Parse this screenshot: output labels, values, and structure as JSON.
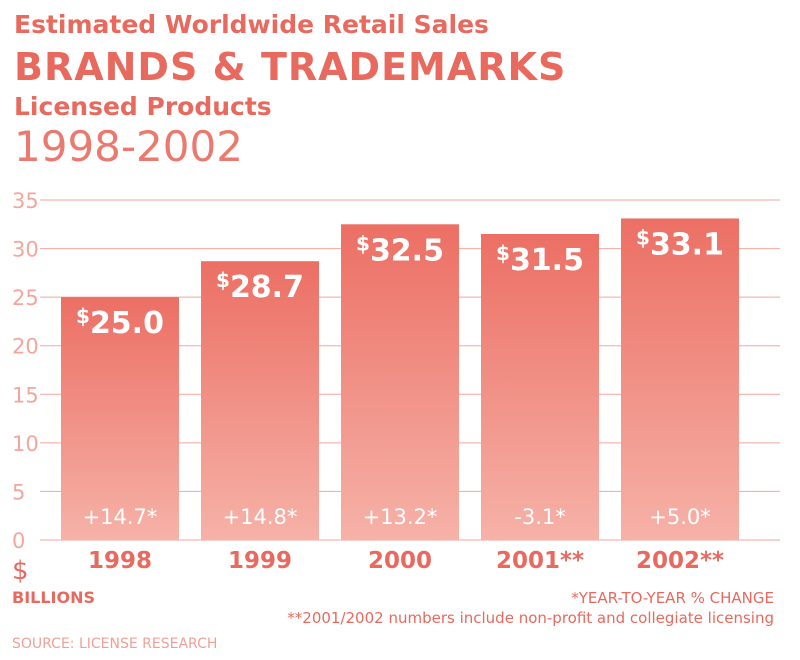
{
  "header": {
    "supertitle": "Estimated Worldwide Retail Sales",
    "title": "BRANDS & TRADEMARKS",
    "subtitle": "Licensed Products",
    "years": "1998-2002"
  },
  "footer": {
    "unit": "$",
    "unit_label": "BILLIONS",
    "note_yoy": "*YEAR-TO-YEAR % CHANGE",
    "note_nonprofit": "**2001/2002 numbers include non-profit and collegiate licensing",
    "source": "SOURCE: LICENSE RESEARCH"
  },
  "colors": {
    "accent": "#e8695e",
    "bar_top": "#ec6f64",
    "bar_bottom": "#f6b2a8",
    "grid": "#f2a79d"
  },
  "chart_data": {
    "type": "bar",
    "categories": [
      "1998",
      "1999",
      "2000",
      "2001**",
      "2002**"
    ],
    "values": [
      25.0,
      28.7,
      32.5,
      31.5,
      33.1
    ],
    "value_labels": [
      "25.0",
      "28.7",
      "32.5",
      "31.5",
      "33.1"
    ],
    "value_prefix": "$",
    "change_labels": [
      "+14.7*",
      "+14.8*",
      "+13.2*",
      "-3.1*",
      "+5.0*"
    ],
    "ylim": [
      0,
      35
    ],
    "yticks": [
      0,
      5,
      10,
      15,
      20,
      25,
      30,
      35
    ],
    "grid": true
  }
}
